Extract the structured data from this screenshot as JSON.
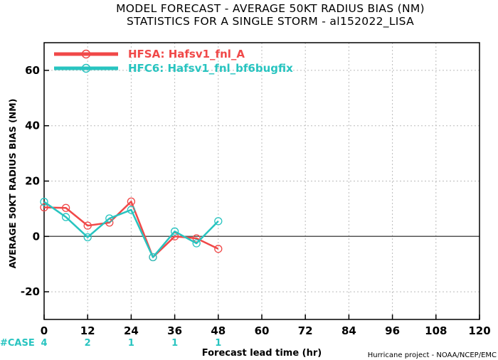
{
  "header": {
    "title_line1": "MODEL FORECAST - AVERAGE 50KT RADIUS BIAS (NM)",
    "title_line2": "STATISTICS FOR A SINGLE STORM - al152022_LISA"
  },
  "footer": {
    "credit": "Hurricane project - NOAA/NCEP/EMC",
    "case_label": "#CASE"
  },
  "colors": {
    "hfsa": "#f04848",
    "hfc6": "#28c4c0",
    "zero_line": "#555555"
  },
  "chart_data": {
    "type": "line",
    "title": "MODEL FORECAST - AVERAGE 50KT RADIUS BIAS (NM)",
    "subtitle": "STATISTICS FOR A SINGLE STORM - al152022_LISA",
    "xlabel": "Forecast lead time (hr)",
    "ylabel": "AVERAGE 50KT RADIUS BIAS (NM)",
    "xlim": [
      0,
      120
    ],
    "ylim": [
      -30,
      70
    ],
    "x_ticks": [
      "0",
      "12",
      "24",
      "36",
      "48",
      "60",
      "72",
      "84",
      "96",
      "108",
      "120"
    ],
    "y_ticks": [
      "-20",
      "0",
      "20",
      "40",
      "60"
    ],
    "grid": true,
    "legend_position": "top-left",
    "series": [
      {
        "name": "HFSA: Hafsv1_fnl_A",
        "color": "#f04848",
        "x": [
          0,
          6,
          12,
          18,
          24,
          30,
          36,
          42,
          48
        ],
        "y": [
          10.5,
          10.3,
          3.9,
          5.0,
          12.6,
          -7.5,
          0.0,
          -0.7,
          -4.5
        ]
      },
      {
        "name": "HFC6: Hafsv1_fnl_bf6bugfix",
        "color": "#28c4c0",
        "x": [
          0,
          6,
          12,
          18,
          24,
          30,
          36,
          42,
          48
        ],
        "y": [
          12.5,
          7.0,
          -0.3,
          6.5,
          9.6,
          -7.5,
          1.8,
          -2.5,
          5.5
        ]
      }
    ],
    "case_counts": [
      {
        "x": 0,
        "label": "4"
      },
      {
        "x": 12,
        "label": "2"
      },
      {
        "x": 24,
        "label": "1"
      },
      {
        "x": 36,
        "label": "1"
      },
      {
        "x": 48,
        "label": "1"
      }
    ]
  }
}
